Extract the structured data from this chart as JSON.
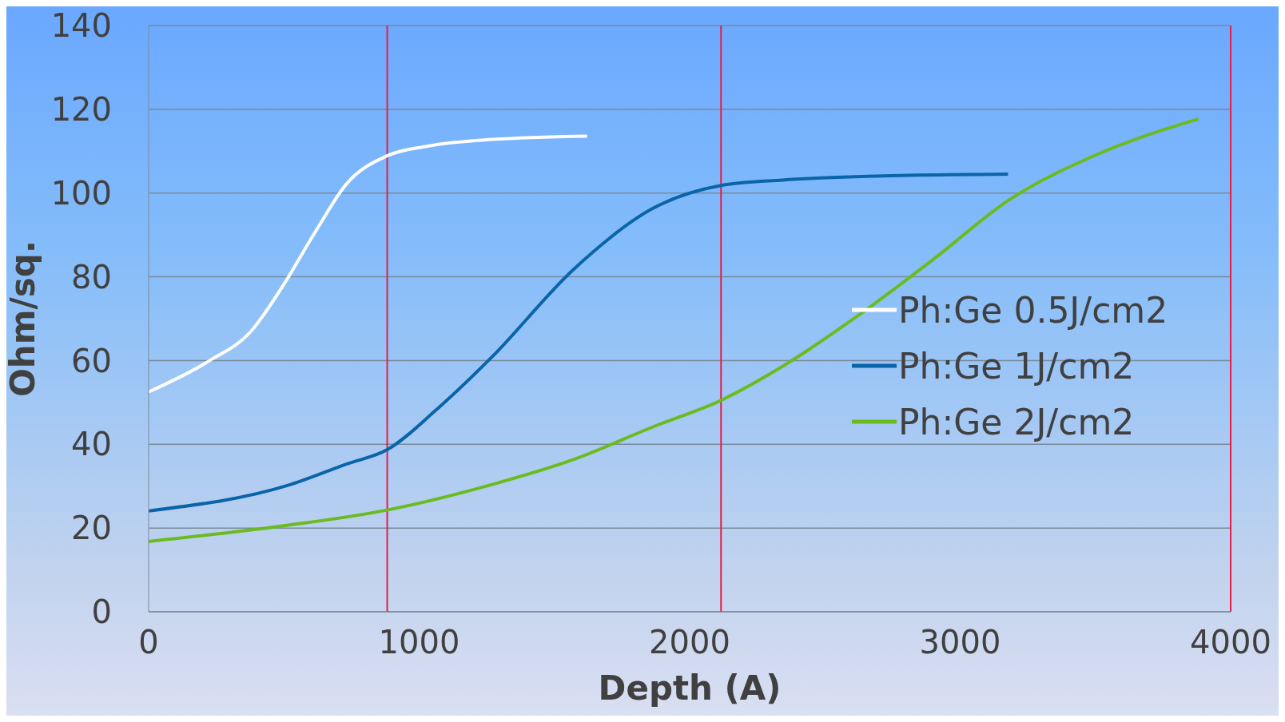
{
  "chart_data": {
    "type": "line",
    "xlabel": "Depth (A)",
    "ylabel": "Ohm/sq.",
    "xlim": [
      0,
      4000
    ],
    "xticks": [
      0,
      1000,
      2000,
      3000,
      4000
    ],
    "ylim": [
      0,
      140
    ],
    "yticks": [
      0,
      20,
      40,
      60,
      80,
      100,
      120,
      140
    ],
    "grid": "y",
    "legend": "right",
    "marker": "none",
    "line_style": "solid",
    "series": [
      {
        "name": "Ph:Ge 0.5J/cm2",
        "color": "#ffffff",
        "x": [
          0,
          226,
          376,
          495,
          614,
          733,
          882,
          1031,
          1270,
          1621
        ],
        "values": [
          52.5,
          60,
          66.8,
          77.7,
          90.5,
          102.3,
          108.9,
          111.2,
          112.8,
          113.6
        ]
      },
      {
        "name": "Ph:Ge 1J/cm2",
        "color": "#0a64a8",
        "x": [
          0,
          525,
          733,
          882,
          1061,
          1270,
          1568,
          1866,
          2116,
          2343,
          2611,
          3177
        ],
        "values": [
          24.1,
          30.4,
          35.3,
          38.7,
          48.1,
          60.9,
          81.6,
          96.4,
          101.8,
          103.1,
          103.9,
          104.5
        ]
      },
      {
        "name": "Ph:Ge 2J/cm2",
        "color": "#6cbb1e",
        "x": [
          0,
          495,
          882,
          1270,
          1568,
          1866,
          2116,
          2343,
          2611,
          2909,
          3177,
          3505,
          3881
        ],
        "values": [
          16.8,
          20.5,
          24.3,
          30.4,
          36.3,
          44.2,
          50.5,
          58.6,
          70.2,
          84.6,
          98.2,
          109.2,
          117.7
        ]
      }
    ],
    "ref_lines": [
      {
        "axis": "x",
        "value": 882,
        "color": "#e0204a"
      },
      {
        "axis": "x",
        "value": 2116,
        "color": "#e0204a"
      },
      {
        "axis": "x",
        "value": 4000,
        "color": "#e0204a"
      }
    ]
  }
}
